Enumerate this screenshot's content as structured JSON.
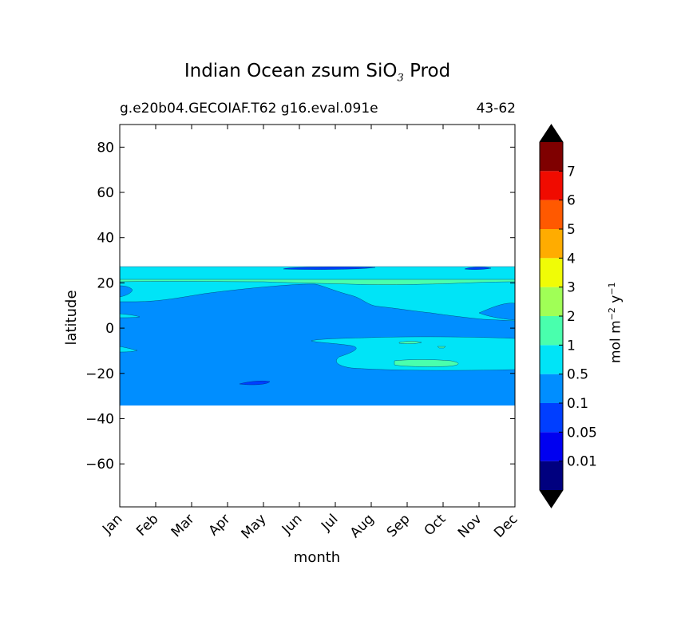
{
  "title": {
    "main": "Indian Ocean zsum SiO",
    "sub": "3",
    "tail": " Prod"
  },
  "subtitle_left": "g.e20b04.GECOIAF.T62 g16.eval.091e",
  "subtitle_right": "43-62",
  "colorbar": {
    "unit_base": "mol m",
    "unit_exp1": "−2",
    "unit_mid": " y",
    "unit_exp2": "−1",
    "levels": [
      "0.01",
      "0.05",
      "0.1",
      "0.5",
      "1",
      "2",
      "3",
      "4",
      "5",
      "6",
      "7"
    ],
    "colors": [
      "#00007f",
      "#0000f0",
      "#003eff",
      "#008eff",
      "#00e4f7",
      "#49ffad",
      "#a0ff56",
      "#f0fc06",
      "#ffac00",
      "#ff5900",
      "#f00b00",
      "#7f0000"
    ],
    "extend": "both"
  },
  "chart_data": {
    "type": "heatmap",
    "subtype": "filled contour",
    "title": "Indian Ocean zsum SiO3 Prod",
    "xlabel": "month",
    "ylabel": "latitude",
    "categories": [
      "Jan",
      "Feb",
      "Mar",
      "Apr",
      "May",
      "Jun",
      "Jul",
      "Aug",
      "Sep",
      "Oct",
      "Nov",
      "Dec"
    ],
    "yticks": [
      80,
      60,
      40,
      20,
      0,
      -20,
      -40,
      -60
    ],
    "ylim": [
      -79,
      90
    ],
    "data_lat_range": [
      -34,
      27
    ],
    "background_level": "0.1-0.5",
    "regions": [
      {
        "level": "0.5-1",
        "description": "band near 17-22N all year, widening Jun-Dec"
      },
      {
        "level": "0.5-1",
        "description": "southern band Aug-Dec near -3 to -19"
      },
      {
        "level": "1-2",
        "description": "small patches near 21N and near -15 in Sep-Oct"
      },
      {
        "level": "0.05-0.1",
        "description": "small patches near 26N in Jun-Aug and Nov, and near -24 in May"
      }
    ],
    "grid": false
  }
}
